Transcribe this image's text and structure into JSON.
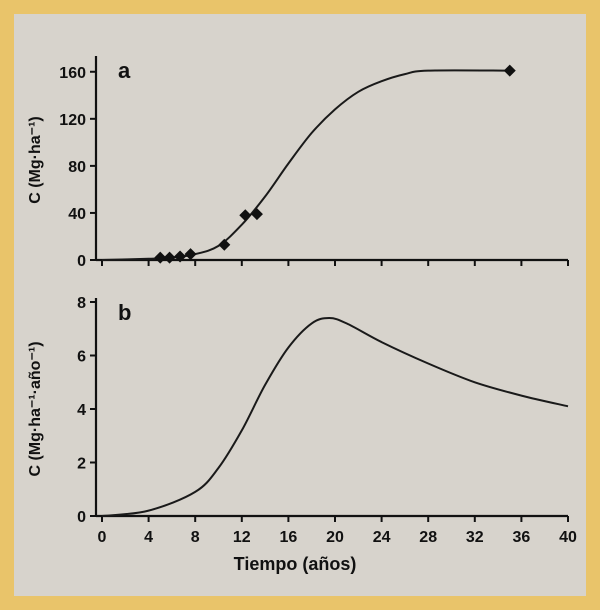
{
  "figure": {
    "border_color": "#e9c46a",
    "background_color": "#d7d3cc"
  },
  "chart_data": [
    {
      "id": "a",
      "type": "line",
      "panel_label": "a",
      "ylabel": "C (Mg·ha⁻¹)",
      "xlim": [
        0,
        40
      ],
      "ylim": [
        0,
        170
      ],
      "y_ticks": [
        0,
        40,
        80,
        120,
        160
      ],
      "x_ticks": [
        0,
        4,
        8,
        12,
        16,
        20,
        24,
        28,
        32,
        36,
        40
      ],
      "marker": "diamond",
      "markers": [
        {
          "x": 5,
          "y": 2
        },
        {
          "x": 5.8,
          "y": 2
        },
        {
          "x": 6.7,
          "y": 3
        },
        {
          "x": 7.6,
          "y": 5
        },
        {
          "x": 10.5,
          "y": 13
        },
        {
          "x": 12.3,
          "y": 38
        },
        {
          "x": 13.3,
          "y": 39
        },
        {
          "x": 35,
          "y": 161
        }
      ],
      "curve": [
        {
          "x": 0,
          "y": 0
        },
        {
          "x": 4,
          "y": 1
        },
        {
          "x": 6,
          "y": 2
        },
        {
          "x": 8,
          "y": 5
        },
        {
          "x": 10,
          "y": 12
        },
        {
          "x": 12,
          "y": 30
        },
        {
          "x": 14,
          "y": 54
        },
        {
          "x": 16,
          "y": 82
        },
        {
          "x": 18,
          "y": 108
        },
        {
          "x": 20,
          "y": 128
        },
        {
          "x": 22,
          "y": 143
        },
        {
          "x": 24,
          "y": 152
        },
        {
          "x": 26,
          "y": 158
        },
        {
          "x": 28,
          "y": 161
        },
        {
          "x": 35,
          "y": 161
        }
      ]
    },
    {
      "id": "b",
      "type": "line",
      "panel_label": "b",
      "ylabel": "C (Mg·ha⁻¹·año⁻¹)",
      "xlabel": "Tiempo (años)",
      "xlim": [
        0,
        40
      ],
      "ylim": [
        0,
        8
      ],
      "y_ticks": [
        0,
        2,
        4,
        6,
        8
      ],
      "x_ticks": [
        0,
        4,
        8,
        12,
        16,
        20,
        24,
        28,
        32,
        36,
        40
      ],
      "curve": [
        {
          "x": 0,
          "y": 0
        },
        {
          "x": 4,
          "y": 0.2
        },
        {
          "x": 8,
          "y": 0.9
        },
        {
          "x": 10,
          "y": 1.8
        },
        {
          "x": 12,
          "y": 3.2
        },
        {
          "x": 14,
          "y": 4.9
        },
        {
          "x": 16,
          "y": 6.3
        },
        {
          "x": 18,
          "y": 7.2
        },
        {
          "x": 19.5,
          "y": 7.4
        },
        {
          "x": 21,
          "y": 7.2
        },
        {
          "x": 24,
          "y": 6.5
        },
        {
          "x": 28,
          "y": 5.7
        },
        {
          "x": 32,
          "y": 5.0
        },
        {
          "x": 36,
          "y": 4.5
        },
        {
          "x": 40,
          "y": 4.1
        }
      ]
    }
  ]
}
